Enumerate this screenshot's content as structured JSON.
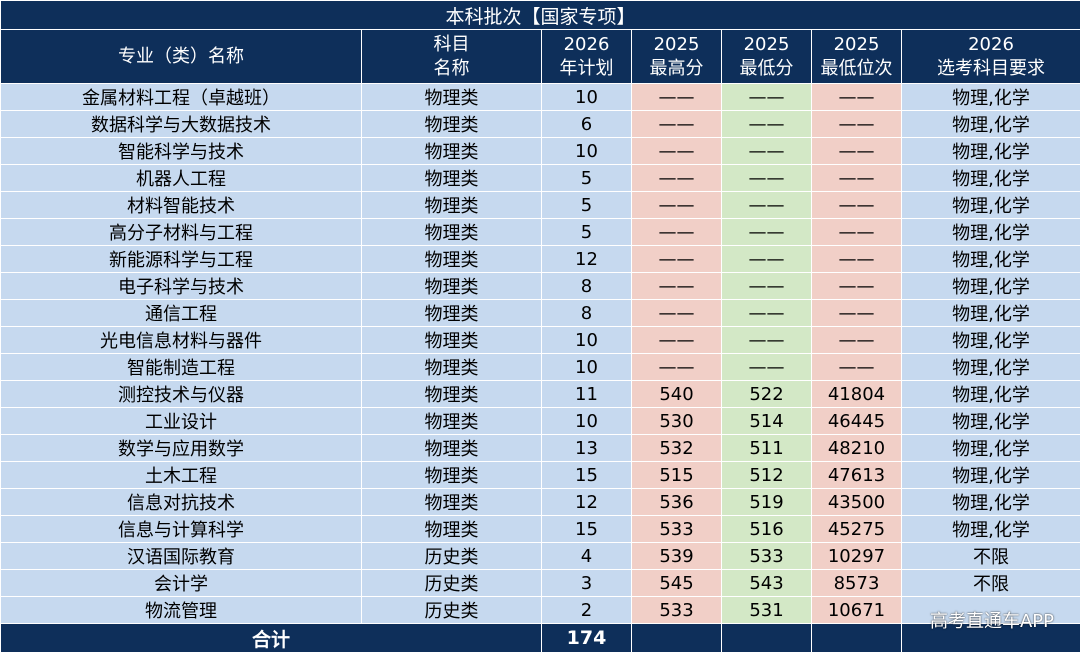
{
  "table": {
    "title": "本科批次【国家专项】",
    "headers": {
      "major": "专业（类）名称",
      "subject_line1": "科目",
      "subject_line2": "名称",
      "plan_line1": "2026",
      "plan_line2": "年计划",
      "max_line1": "2025",
      "max_line2": "最高分",
      "min_line1": "2025",
      "min_line2": "最低分",
      "rank_line1": "2025",
      "rank_line2": "最低位次",
      "req_line1": "2026",
      "req_line2": "选考科目要求"
    },
    "rows": [
      {
        "major": "金属材料工程（卓越班）",
        "subject": "物理类",
        "plan": "10",
        "max": "——",
        "min": "——",
        "rank": "——",
        "req": "物理,化学"
      },
      {
        "major": "数据科学与大数据技术",
        "subject": "物理类",
        "plan": "6",
        "max": "——",
        "min": "——",
        "rank": "——",
        "req": "物理,化学"
      },
      {
        "major": "智能科学与技术",
        "subject": "物理类",
        "plan": "10",
        "max": "——",
        "min": "——",
        "rank": "——",
        "req": "物理,化学"
      },
      {
        "major": "机器人工程",
        "subject": "物理类",
        "plan": "5",
        "max": "——",
        "min": "——",
        "rank": "——",
        "req": "物理,化学"
      },
      {
        "major": "材料智能技术",
        "subject": "物理类",
        "plan": "5",
        "max": "——",
        "min": "——",
        "rank": "——",
        "req": "物理,化学"
      },
      {
        "major": "高分子材料与工程",
        "subject": "物理类",
        "plan": "5",
        "max": "——",
        "min": "——",
        "rank": "——",
        "req": "物理,化学"
      },
      {
        "major": "新能源科学与工程",
        "subject": "物理类",
        "plan": "12",
        "max": "——",
        "min": "——",
        "rank": "——",
        "req": "物理,化学"
      },
      {
        "major": "电子科学与技术",
        "subject": "物理类",
        "plan": "8",
        "max": "——",
        "min": "——",
        "rank": "——",
        "req": "物理,化学"
      },
      {
        "major": "通信工程",
        "subject": "物理类",
        "plan": "8",
        "max": "——",
        "min": "——",
        "rank": "——",
        "req": "物理,化学"
      },
      {
        "major": "光电信息材料与器件",
        "subject": "物理类",
        "plan": "10",
        "max": "——",
        "min": "——",
        "rank": "——",
        "req": "物理,化学"
      },
      {
        "major": "智能制造工程",
        "subject": "物理类",
        "plan": "10",
        "max": "——",
        "min": "——",
        "rank": "——",
        "req": "物理,化学"
      },
      {
        "major": "测控技术与仪器",
        "subject": "物理类",
        "plan": "11",
        "max": "540",
        "min": "522",
        "rank": "41804",
        "req": "物理,化学"
      },
      {
        "major": "工业设计",
        "subject": "物理类",
        "plan": "10",
        "max": "530",
        "min": "514",
        "rank": "46445",
        "req": "物理,化学"
      },
      {
        "major": "数学与应用数学",
        "subject": "物理类",
        "plan": "13",
        "max": "532",
        "min": "511",
        "rank": "48210",
        "req": "物理,化学"
      },
      {
        "major": "土木工程",
        "subject": "物理类",
        "plan": "15",
        "max": "515",
        "min": "512",
        "rank": "47613",
        "req": "物理,化学"
      },
      {
        "major": "信息对抗技术",
        "subject": "物理类",
        "plan": "12",
        "max": "536",
        "min": "519",
        "rank": "43500",
        "req": "物理,化学"
      },
      {
        "major": "信息与计算科学",
        "subject": "物理类",
        "plan": "15",
        "max": "533",
        "min": "516",
        "rank": "45275",
        "req": "物理,化学"
      },
      {
        "major": "汉语国际教育",
        "subject": "历史类",
        "plan": "4",
        "max": "539",
        "min": "533",
        "rank": "10297",
        "req": "不限"
      },
      {
        "major": "会计学",
        "subject": "历史类",
        "plan": "3",
        "max": "545",
        "min": "543",
        "rank": "8573",
        "req": "不限"
      },
      {
        "major": "物流管理",
        "subject": "历史类",
        "plan": "2",
        "max": "533",
        "min": "531",
        "rank": "10671",
        "req": ""
      }
    ],
    "total": {
      "label": "合计",
      "plan": "174"
    }
  },
  "watermark": "高考直通车APP",
  "colors": {
    "header_bg": "#0e2f5a",
    "row_bg": "#c6d9ef",
    "max_col_bg": "#f1cfc7",
    "min_col_bg": "#d3e8c6",
    "rank_col_bg": "#f1cfc7"
  }
}
